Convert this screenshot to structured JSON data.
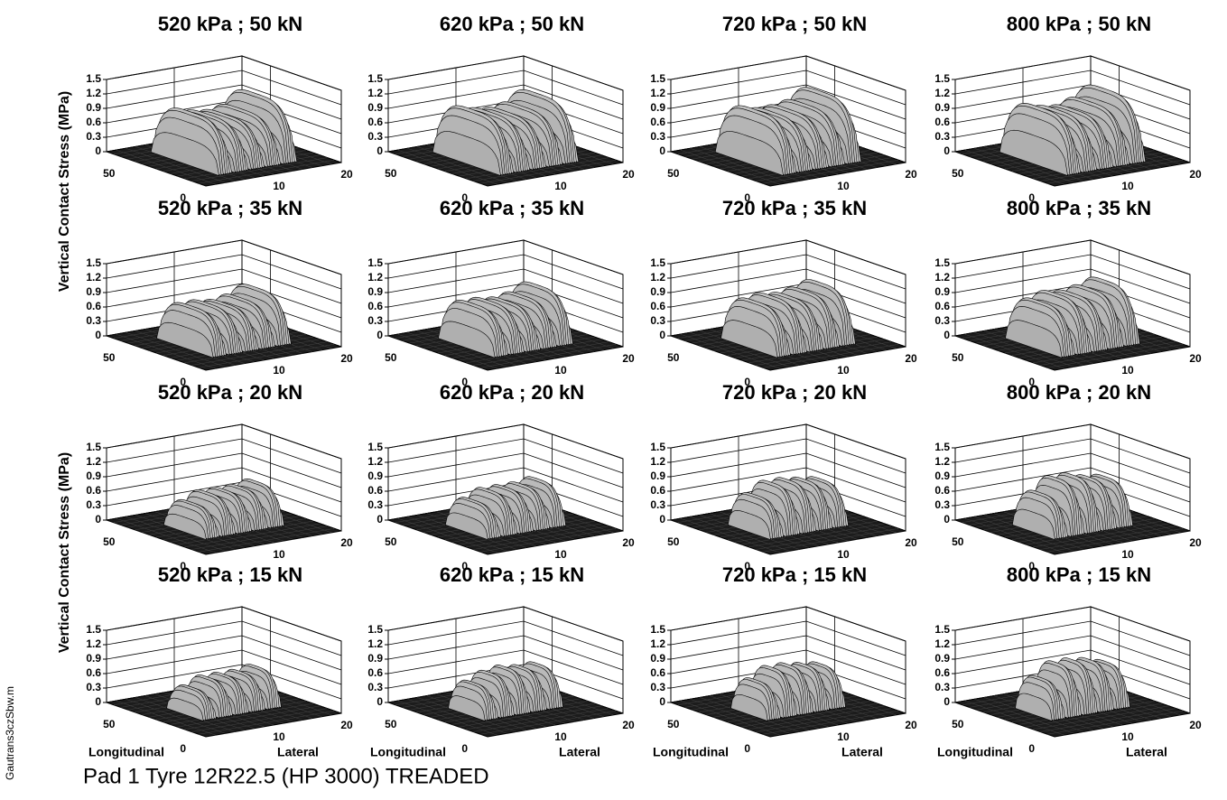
{
  "chart_data": [
    {
      "type": "surface3d",
      "title": "520 kPa ; 50 kN",
      "values": [
        1.05,
        0.95,
        0.9,
        0.95,
        1.2
      ],
      "zlim": [
        0,
        1.5
      ],
      "zticks": [
        0,
        0.3,
        0.6,
        0.9,
        1.2,
        1.5
      ],
      "xlim": [
        0,
        20
      ],
      "xticks": [
        10,
        20
      ],
      "ylim": [
        0,
        70
      ],
      "yticks": [
        0,
        50
      ]
    },
    {
      "type": "surface3d",
      "title": "620 kPa ; 50 kN",
      "values": [
        1.1,
        1.0,
        0.95,
        1.0,
        1.2
      ],
      "zlim": [
        0,
        1.5
      ],
      "zticks": [
        0,
        0.3,
        0.6,
        0.9,
        1.2,
        1.5
      ],
      "xlim": [
        0,
        20
      ],
      "xticks": [
        10,
        20
      ],
      "ylim": [
        0,
        70
      ],
      "yticks": [
        0,
        50
      ]
    },
    {
      "type": "surface3d",
      "title": "720 kPa ; 50 kN",
      "values": [
        1.1,
        1.0,
        1.0,
        1.05,
        1.25
      ],
      "zlim": [
        0,
        1.5
      ],
      "zticks": [
        0,
        0.3,
        0.6,
        0.9,
        1.2,
        1.5
      ],
      "xlim": [
        0,
        20
      ],
      "xticks": [
        10,
        20
      ],
      "ylim": [
        0,
        70
      ],
      "yticks": [
        0,
        50
      ]
    },
    {
      "type": "surface3d",
      "title": "800 kPa ; 50 kN",
      "values": [
        1.15,
        1.05,
        1.0,
        1.1,
        1.3
      ],
      "zlim": [
        0,
        1.5
      ],
      "zticks": [
        0,
        0.3,
        0.6,
        0.9,
        1.2,
        1.5
      ],
      "xlim": [
        0,
        20
      ],
      "xticks": [
        10,
        20
      ],
      "ylim": [
        0,
        70
      ],
      "yticks": [
        0,
        50
      ]
    },
    {
      "type": "surface3d",
      "title": "520 kPa ; 35 kN",
      "values": [
        0.85,
        0.85,
        0.8,
        0.85,
        1.0
      ],
      "zlim": [
        0,
        1.5
      ],
      "zticks": [
        0,
        0.3,
        0.6,
        0.9,
        1.2,
        1.5
      ],
      "xlim": [
        0,
        20
      ],
      "xticks": [
        10,
        20
      ],
      "ylim": [
        0,
        70
      ],
      "yticks": [
        0,
        50
      ]
    },
    {
      "type": "surface3d",
      "title": "620 kPa ; 35 kN",
      "values": [
        0.9,
        0.9,
        0.85,
        0.9,
        1.05
      ],
      "zlim": [
        0,
        1.5
      ],
      "zticks": [
        0,
        0.3,
        0.6,
        0.9,
        1.2,
        1.5
      ],
      "xlim": [
        0,
        20
      ],
      "xticks": [
        10,
        20
      ],
      "ylim": [
        0,
        70
      ],
      "yticks": [
        0,
        50
      ]
    },
    {
      "type": "surface3d",
      "title": "720 kPa ; 35 kN",
      "values": [
        0.95,
        1.0,
        0.95,
        1.0,
        1.1
      ],
      "zlim": [
        0,
        1.5
      ],
      "zticks": [
        0,
        0.3,
        0.6,
        0.9,
        1.2,
        1.5
      ],
      "xlim": [
        0,
        20
      ],
      "xticks": [
        10,
        20
      ],
      "ylim": [
        0,
        70
      ],
      "yticks": [
        0,
        50
      ]
    },
    {
      "type": "surface3d",
      "title": "800 kPa ; 35 kN",
      "values": [
        0.95,
        1.05,
        1.0,
        1.05,
        1.15
      ],
      "zlim": [
        0,
        1.5
      ],
      "zticks": [
        0,
        0.3,
        0.6,
        0.9,
        1.2,
        1.5
      ],
      "xlim": [
        0,
        20
      ],
      "xticks": [
        10,
        20
      ],
      "ylim": [
        0,
        70
      ],
      "yticks": [
        0,
        50
      ]
    },
    {
      "type": "surface3d",
      "title": "520 kPa ; 20 kN",
      "values": [
        0.6,
        0.75,
        0.75,
        0.75,
        0.8
      ],
      "zlim": [
        0,
        1.5
      ],
      "zticks": [
        0,
        0.3,
        0.6,
        0.9,
        1.2,
        1.5
      ],
      "xlim": [
        0,
        20
      ],
      "xticks": [
        10,
        20
      ],
      "ylim": [
        0,
        70
      ],
      "yticks": [
        0,
        50
      ]
    },
    {
      "type": "surface3d",
      "title": "620 kPa ; 20 kN",
      "values": [
        0.65,
        0.8,
        0.8,
        0.8,
        0.85
      ],
      "zlim": [
        0,
        1.5
      ],
      "zticks": [
        0,
        0.3,
        0.6,
        0.9,
        1.2,
        1.5
      ],
      "xlim": [
        0,
        20
      ],
      "xticks": [
        10,
        20
      ],
      "ylim": [
        0,
        70
      ],
      "yticks": [
        0,
        50
      ]
    },
    {
      "type": "surface3d",
      "title": "720 kPa ; 20 kN",
      "values": [
        0.75,
        0.95,
        0.95,
        0.9,
        0.85
      ],
      "zlim": [
        0,
        1.5
      ],
      "zticks": [
        0,
        0.3,
        0.6,
        0.9,
        1.2,
        1.5
      ],
      "xlim": [
        0,
        20
      ],
      "xticks": [
        10,
        20
      ],
      "ylim": [
        0,
        70
      ],
      "yticks": [
        0,
        50
      ]
    },
    {
      "type": "surface3d",
      "title": "800 kPa ; 20 kN",
      "values": [
        0.8,
        1.05,
        1.05,
        0.95,
        0.9
      ],
      "zlim": [
        0,
        1.5
      ],
      "zticks": [
        0,
        0.3,
        0.6,
        0.9,
        1.2,
        1.5
      ],
      "xlim": [
        0,
        20
      ],
      "xticks": [
        10,
        20
      ],
      "ylim": [
        0,
        70
      ],
      "yticks": [
        0,
        50
      ]
    },
    {
      "type": "surface3d",
      "title": "520 kPa ; 15 kN",
      "values": [
        0.55,
        0.7,
        0.7,
        0.7,
        0.75
      ],
      "zlim": [
        0,
        1.5
      ],
      "zticks": [
        0,
        0.3,
        0.6,
        0.9,
        1.2,
        1.5
      ],
      "xlim": [
        0,
        20
      ],
      "xticks": [
        10,
        20
      ],
      "ylim": [
        0,
        70
      ],
      "yticks": [
        0,
        50
      ],
      "xlabel": "Lateral",
      "ylabel": "Longitudinal"
    },
    {
      "type": "surface3d",
      "title": "620 kPa ; 15 kN",
      "values": [
        0.65,
        0.8,
        0.85,
        0.8,
        0.8
      ],
      "zlim": [
        0,
        1.5
      ],
      "zticks": [
        0,
        0.3,
        0.6,
        0.9,
        1.2,
        1.5
      ],
      "xlim": [
        0,
        20
      ],
      "xticks": [
        10,
        20
      ],
      "ylim": [
        0,
        70
      ],
      "yticks": [
        0,
        50
      ],
      "xlabel": "Lateral",
      "ylabel": "Longitudinal"
    },
    {
      "type": "surface3d",
      "title": "720 kPa ; 15 kN",
      "values": [
        0.7,
        0.9,
        0.9,
        0.85,
        0.8
      ],
      "zlim": [
        0,
        1.5
      ],
      "zticks": [
        0,
        0.3,
        0.6,
        0.9,
        1.2,
        1.5
      ],
      "xlim": [
        0,
        20
      ],
      "xticks": [
        10,
        20
      ],
      "ylim": [
        0,
        70
      ],
      "yticks": [
        0,
        50
      ],
      "xlabel": "Lateral",
      "ylabel": "Longitudinal"
    },
    {
      "type": "surface3d",
      "title": "800 kPa ; 15 kN",
      "values": [
        0.75,
        1.0,
        1.0,
        0.95,
        0.85
      ],
      "zlim": [
        0,
        1.5
      ],
      "zticks": [
        0,
        0.3,
        0.6,
        0.9,
        1.2,
        1.5
      ],
      "xlim": [
        0,
        20
      ],
      "xticks": [
        10,
        20
      ],
      "ylim": [
        0,
        70
      ],
      "yticks": [
        0,
        50
      ],
      "xlabel": "Lateral",
      "ylabel": "Longitudinal"
    }
  ],
  "zlabel": "Vertical Contact Stress (MPa)",
  "title": "Pad 1 Tyre 12R22.5 (HP 3000) TREADED",
  "source": "Gautrans3czSbw.m"
}
